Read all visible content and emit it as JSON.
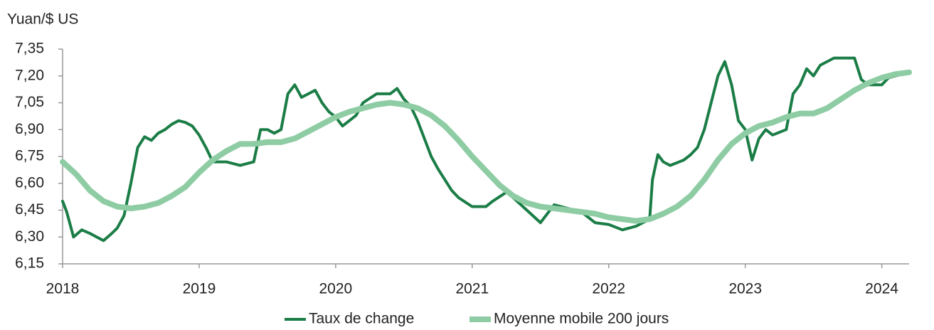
{
  "chart_data": {
    "type": "line",
    "y_label": "Yuan/$ US",
    "xlim": [
      2018,
      2024.2
    ],
    "xticks": [
      2018,
      2019,
      2020,
      2021,
      2022,
      2023,
      2024
    ],
    "ylim": [
      6.15,
      7.35
    ],
    "yticks": [
      {
        "value": 6.15,
        "label": "6,15"
      },
      {
        "value": 6.3,
        "label": "6,30"
      },
      {
        "value": 6.45,
        "label": "6,45"
      },
      {
        "value": 6.6,
        "label": "6,60"
      },
      {
        "value": 6.75,
        "label": "6,75"
      },
      {
        "value": 6.9,
        "label": "6,90"
      },
      {
        "value": 7.05,
        "label": "7,05"
      },
      {
        "value": 7.2,
        "label": "7,20"
      },
      {
        "value": 7.35,
        "label": "7,35"
      }
    ],
    "grid": false,
    "legend": "bottom",
    "series": [
      {
        "name": "Taux de change",
        "color": "#1b7d46",
        "width": 4,
        "x": [
          2018.0,
          2018.03,
          2018.08,
          2018.14,
          2018.2,
          2018.25,
          2018.3,
          2018.36,
          2018.4,
          2018.45,
          2018.5,
          2018.55,
          2018.6,
          2018.65,
          2018.7,
          2018.75,
          2018.8,
          2018.85,
          2018.9,
          2018.95,
          2019.0,
          2019.05,
          2019.1,
          2019.2,
          2019.3,
          2019.4,
          2019.45,
          2019.5,
          2019.55,
          2019.6,
          2019.65,
          2019.7,
          2019.75,
          2019.8,
          2019.85,
          2019.9,
          2019.95,
          2020.0,
          2020.05,
          2020.1,
          2020.15,
          2020.2,
          2020.3,
          2020.4,
          2020.45,
          2020.5,
          2020.55,
          2020.6,
          2020.65,
          2020.7,
          2020.75,
          2020.8,
          2020.85,
          2020.9,
          2021.0,
          2021.1,
          2021.15,
          2021.25,
          2021.3,
          2021.4,
          2021.5,
          2021.6,
          2021.7,
          2021.8,
          2021.9,
          2022.0,
          2022.1,
          2022.2,
          2022.3,
          2022.32,
          2022.36,
          2022.4,
          2022.45,
          2022.55,
          2022.6,
          2022.65,
          2022.7,
          2022.75,
          2022.8,
          2022.85,
          2022.9,
          2022.95,
          2023.0,
          2023.05,
          2023.1,
          2023.15,
          2023.2,
          2023.3,
          2023.35,
          2023.4,
          2023.45,
          2023.5,
          2023.55,
          2023.6,
          2023.65,
          2023.7,
          2023.8,
          2023.85,
          2023.9,
          2024.0,
          2024.05,
          2024.1,
          2024.2
        ],
        "values": [
          6.5,
          6.44,
          6.3,
          6.34,
          6.32,
          6.3,
          6.28,
          6.32,
          6.35,
          6.42,
          6.6,
          6.8,
          6.86,
          6.84,
          6.88,
          6.9,
          6.93,
          6.95,
          6.94,
          6.92,
          6.87,
          6.8,
          6.72,
          6.72,
          6.7,
          6.72,
          6.9,
          6.9,
          6.88,
          6.9,
          7.1,
          7.15,
          7.08,
          7.1,
          7.12,
          7.05,
          7.0,
          6.97,
          6.92,
          6.95,
          6.98,
          7.05,
          7.1,
          7.1,
          7.13,
          7.07,
          7.03,
          6.95,
          6.85,
          6.75,
          6.68,
          6.62,
          6.56,
          6.52,
          6.47,
          6.47,
          6.5,
          6.55,
          6.52,
          6.45,
          6.38,
          6.48,
          6.46,
          6.44,
          6.38,
          6.37,
          6.34,
          6.36,
          6.4,
          6.62,
          6.76,
          6.72,
          6.7,
          6.73,
          6.76,
          6.8,
          6.9,
          7.05,
          7.2,
          7.28,
          7.15,
          6.95,
          6.9,
          6.73,
          6.85,
          6.9,
          6.87,
          6.9,
          7.1,
          7.15,
          7.24,
          7.2,
          7.26,
          7.28,
          7.3,
          7.3,
          7.3,
          7.18,
          7.15,
          7.15,
          7.19,
          7.2,
          7.22
        ]
      },
      {
        "name": "Moyenne mobile 200 jours",
        "color": "#8ecca4",
        "width": 8,
        "x": [
          2018.0,
          2018.1,
          2018.2,
          2018.3,
          2018.4,
          2018.5,
          2018.6,
          2018.7,
          2018.8,
          2018.9,
          2019.0,
          2019.1,
          2019.2,
          2019.3,
          2019.4,
          2019.5,
          2019.6,
          2019.7,
          2019.8,
          2019.9,
          2020.0,
          2020.1,
          2020.2,
          2020.3,
          2020.4,
          2020.5,
          2020.6,
          2020.7,
          2020.8,
          2020.9,
          2021.0,
          2021.1,
          2021.2,
          2021.3,
          2021.4,
          2021.5,
          2021.6,
          2021.7,
          2021.8,
          2021.9,
          2022.0,
          2022.1,
          2022.2,
          2022.3,
          2022.4,
          2022.5,
          2022.6,
          2022.7,
          2022.8,
          2022.9,
          2023.0,
          2023.1,
          2023.2,
          2023.3,
          2023.4,
          2023.5,
          2023.6,
          2023.7,
          2023.8,
          2023.9,
          2024.0,
          2024.1,
          2024.2
        ],
        "values": [
          6.72,
          6.65,
          6.56,
          6.5,
          6.47,
          6.46,
          6.47,
          6.49,
          6.53,
          6.58,
          6.66,
          6.73,
          6.78,
          6.82,
          6.82,
          6.83,
          6.83,
          6.85,
          6.89,
          6.93,
          6.97,
          7.0,
          7.02,
          7.04,
          7.05,
          7.04,
          7.02,
          6.98,
          6.92,
          6.84,
          6.75,
          6.67,
          6.59,
          6.53,
          6.49,
          6.47,
          6.46,
          6.45,
          6.44,
          6.43,
          6.41,
          6.4,
          6.39,
          6.4,
          6.43,
          6.47,
          6.53,
          6.62,
          6.73,
          6.82,
          6.88,
          6.92,
          6.94,
          6.97,
          6.99,
          6.99,
          7.02,
          7.07,
          7.12,
          7.16,
          7.19,
          7.21,
          7.22
        ]
      }
    ]
  }
}
